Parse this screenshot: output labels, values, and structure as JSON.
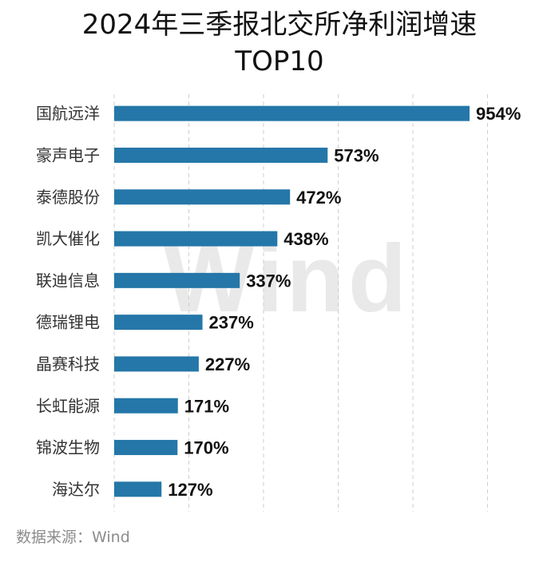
{
  "chart_data": {
    "type": "bar",
    "orientation": "horizontal",
    "title": "2024年三季报北交所净利润增速",
    "subtitle": "TOP10",
    "categories": [
      "国航远洋",
      "豪声电子",
      "泰德股份",
      "凯大催化",
      "联迪信息",
      "德瑞锂电",
      "晶赛科技",
      "长虹能源",
      "锦波生物",
      "海达尔"
    ],
    "values": [
      954,
      573,
      472,
      438,
      337,
      237,
      227,
      171,
      170,
      127
    ],
    "value_labels": [
      "954%",
      "573%",
      "472%",
      "438%",
      "337%",
      "237%",
      "227%",
      "171%",
      "170%",
      "127%"
    ],
    "xlim": [
      0,
      1000
    ],
    "grid": true,
    "bar_color": "#2477A8"
  },
  "source": "数据来源：Wind",
  "watermark": "Wind"
}
